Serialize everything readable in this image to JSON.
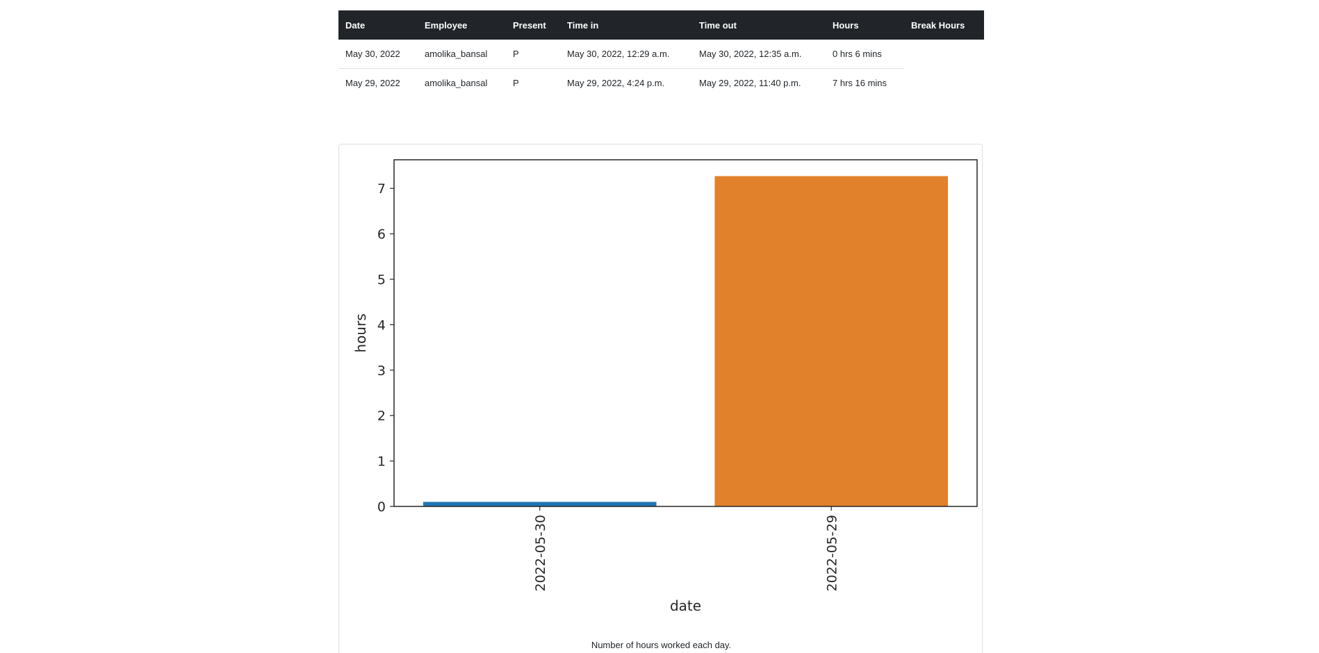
{
  "table": {
    "headers": {
      "date": "Date",
      "employee": "Employee",
      "present": "Present",
      "time_in": "Time in",
      "time_out": "Time out",
      "hours": "Hours",
      "break_hours": "Break Hours"
    },
    "rows": [
      {
        "date": "May 30, 2022",
        "employee": "amolika_bansal",
        "present": "P",
        "time_in": "May 30, 2022, 12:29 a.m.",
        "time_out": "May 30, 2022, 12:35 a.m.",
        "hours": "0 hrs 6 mins",
        "break_hours": ""
      },
      {
        "date": "May 29, 2022",
        "employee": "amolika_bansal",
        "present": "P",
        "time_in": "May 29, 2022, 4:24 p.m.",
        "time_out": "May 29, 2022, 11:40 p.m.",
        "hours": "7 hrs 16 mins",
        "break_hours": ""
      }
    ]
  },
  "chart": {
    "caption": "Number of hours worked each day."
  },
  "chart_data": {
    "type": "bar",
    "categories": [
      "2022-05-30",
      "2022-05-29"
    ],
    "values": [
      0.1,
      7.27
    ],
    "colors": [
      "#1f77b4",
      "#e1812c"
    ],
    "title": "",
    "xlabel": "date",
    "ylabel": "hours",
    "ylim": [
      0,
      7.63
    ],
    "yticks": [
      0,
      1,
      2,
      3,
      4,
      5,
      6,
      7
    ],
    "grid": false
  }
}
